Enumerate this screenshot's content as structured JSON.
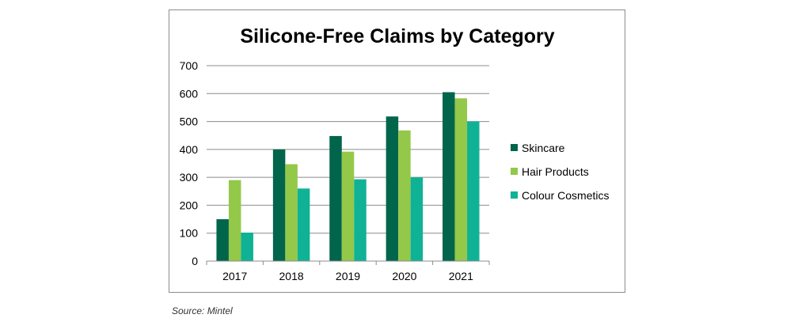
{
  "chart_data": {
    "type": "bar",
    "title": "Silicone-Free Claims by Category",
    "xlabel": "",
    "ylabel": "",
    "categories": [
      "2017",
      "2018",
      "2019",
      "2020",
      "2021"
    ],
    "series": [
      {
        "name": "Skincare",
        "color": "#00654b",
        "values": [
          150,
          400,
          448,
          518,
          605
        ]
      },
      {
        "name": "Hair Products",
        "color": "#93c849",
        "values": [
          290,
          347,
          392,
          468,
          583
        ]
      },
      {
        "name": "Colour Cosmetics",
        "color": "#10b296",
        "values": [
          102,
          260,
          293,
          300,
          500
        ]
      }
    ],
    "ylim": [
      0,
      700
    ],
    "yticks": [
      0,
      100,
      200,
      300,
      400,
      500,
      600,
      700
    ],
    "grid": true,
    "legend_position": "right"
  },
  "source_note": "Source: Mintel"
}
